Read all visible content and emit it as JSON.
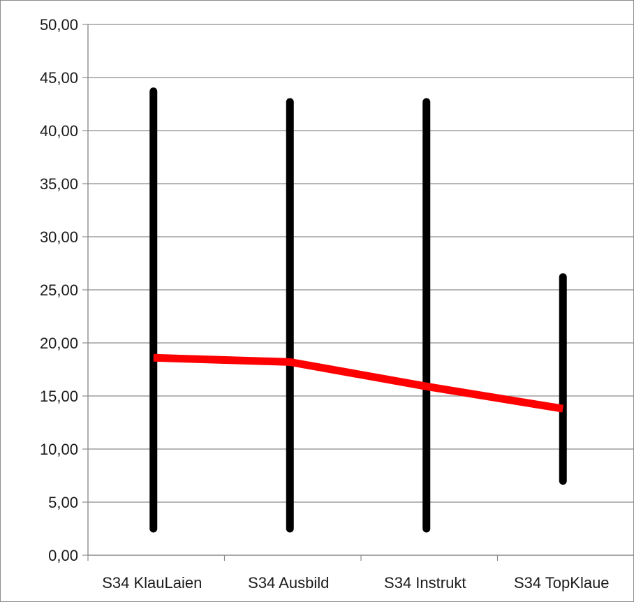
{
  "chart_data": {
    "type": "line",
    "title": "",
    "xlabel": "",
    "ylabel": "",
    "ylim": [
      0,
      50
    ],
    "y_ticks": [
      "0,00",
      "5,00",
      "10,00",
      "15,00",
      "20,00",
      "25,00",
      "30,00",
      "35,00",
      "40,00",
      "45,00",
      "50,00"
    ],
    "y_tick_values": [
      0,
      5,
      10,
      15,
      20,
      25,
      30,
      35,
      40,
      45,
      50
    ],
    "grid": true,
    "categories": [
      "S34 KlauLaien",
      "S34 Ausbild",
      "S34 Instrukt",
      "S34 TopKlaue"
    ],
    "series": [
      {
        "values": [
          18.6,
          18.2,
          15.9,
          13.8
        ],
        "color": "#ff0000"
      }
    ],
    "ranges": [
      {
        "low": 2.5,
        "high": 43.7
      },
      {
        "low": 2.5,
        "high": 42.7
      },
      {
        "low": 2.5,
        "high": 42.7
      },
      {
        "low": 7.0,
        "high": 26.2
      }
    ],
    "range_color": "#000000",
    "gridline_color": "#8c8c8c",
    "axis_color": "#8c8c8c"
  }
}
